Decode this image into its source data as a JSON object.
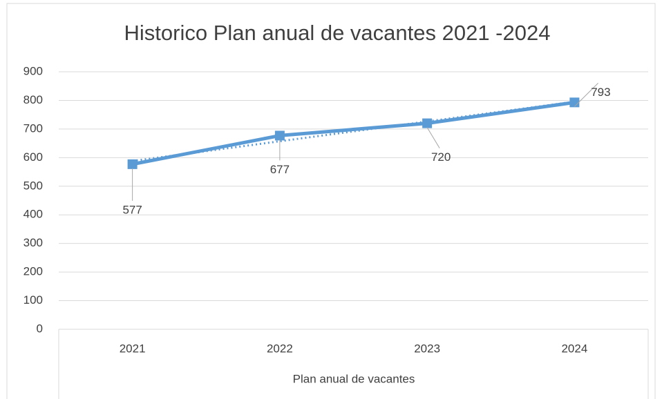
{
  "chart_data": {
    "type": "line",
    "title": "Historico Plan anual de vacantes 2021 -2024",
    "x_label": "Plan anual de vacantes",
    "categories": [
      "2021",
      "2022",
      "2023",
      "2024"
    ],
    "series": [
      {
        "name": "Plan anual de vacantes",
        "color": "#5b9bd5",
        "values": [
          577,
          677,
          720,
          793
        ]
      }
    ],
    "ylim": [
      0,
      900
    ],
    "yticks": [
      0,
      100,
      200,
      300,
      400,
      500,
      600,
      700,
      800,
      900
    ],
    "grid": true,
    "trendline": "linear"
  }
}
